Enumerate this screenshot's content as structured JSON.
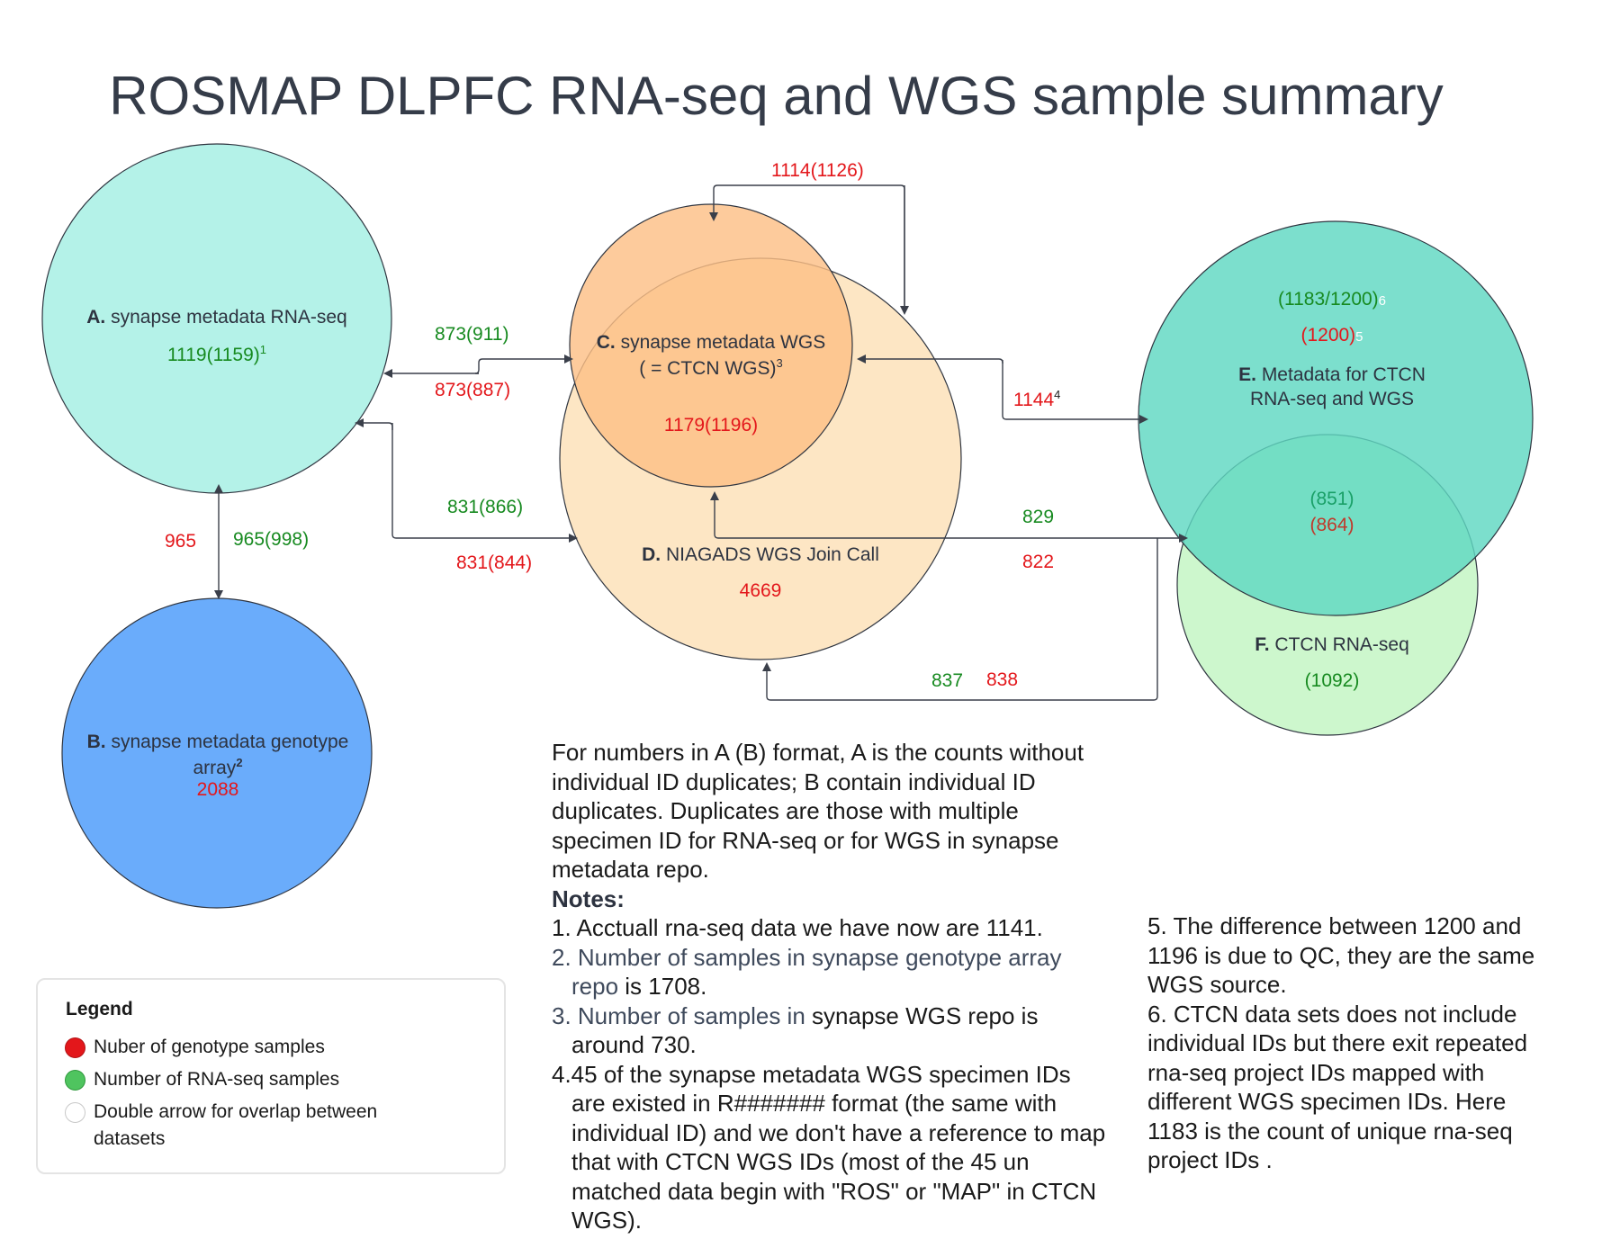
{
  "title": "ROSMAP DLPFC RNA-seq and WGS sample summary",
  "colors": {
    "red": "#e3171b",
    "green": "#178a20",
    "circle_a": "#b4f2e8",
    "circle_b": "#6aacfb",
    "circle_c": "#fdc593",
    "circle_d": "#fde6c4",
    "circle_e": "#7ddfcd",
    "circle_f": "#cdf7cd"
  },
  "nodes": {
    "a": {
      "letter": "A.",
      "label": "synapse metadata RNA-seq",
      "count": "1119(1159)",
      "sup": "1"
    },
    "b": {
      "letter": "B.",
      "label_line1": "synapse metadata genotype",
      "label_line2": "array",
      "sup": "2",
      "count": "2088"
    },
    "c": {
      "letter": "C.",
      "label_line1": "synapse metadata WGS",
      "label_line2": "( = CTCN WGS)",
      "sup": "3",
      "count": "1179(1196)"
    },
    "d": {
      "letter": "D.",
      "label": "NIAGADS WGS Join Call",
      "count": "4669"
    },
    "e": {
      "letter": "E.",
      "label_line1": "Metadata for CTCN",
      "label_line2": "RNA-seq and  WGS",
      "count_green": "(1183/1200)",
      "sup_green": "6",
      "count_red": "(1200)",
      "sup_red": "5"
    },
    "ef_overlap": {
      "count_green": "(851)",
      "count_red": "(864)"
    },
    "f": {
      "letter": "F.",
      "label": "CTCN RNA-seq",
      "count": "(1092)"
    }
  },
  "edges": {
    "c_loop": "1114(1126)",
    "a_c_green": "873(911)",
    "a_c_red": "873(887)",
    "a_d_green": "831(866)",
    "a_d_red": "831(844)",
    "a_b_red": "965",
    "a_b_green": "965(998)",
    "c_e_red": "1144",
    "c_e_sup": "4",
    "d_f_green": "829",
    "d_f_red": "822",
    "bottom_green": "837",
    "bottom_red": "838"
  },
  "explanation": [
    "For numbers in A (B) format, A is the counts without",
    "individual ID duplicates; B contain individual ID",
    "duplicates. Duplicates are those with multiple",
    "specimen ID for RNA-seq or for WGS in synapse",
    "metadata repo."
  ],
  "notes": {
    "heading": "Notes:",
    "n1": "1. Acctuall rna-seq data we have now are 1141.",
    "n2a": "2. Number of samples in synapse genotype array",
    "n2b_muted": "repo",
    "n2b_rest": " is 1708.",
    "n3a_muted": "3. Number of samples in",
    "n3a_rest": " synapse WGS repo is",
    "n3b": "around 730.",
    "n4": [
      "4.45 of the synapse metadata WGS specimen IDs",
      "are existed in R####### format (the same with",
      "individual ID) and we don't have a reference to map",
      "that with CTCN WGS IDs (most of the 45 un",
      "matched data begin with \"ROS\" or \"MAP\" in CTCN",
      "WGS)."
    ],
    "right": [
      "5. The difference between 1200 and",
      "1196 is due to QC, they are the same",
      "WGS source.",
      "6. CTCN data sets does not include",
      "individual IDs  but there exit repeated",
      "rna-seq project IDs mapped with",
      "different WGS specimen IDs. Here",
      "1183 is the count of unique rna-seq",
      "project IDs ."
    ]
  },
  "legend": {
    "title": "Legend",
    "items": [
      {
        "label": "Nuber of genotype samples",
        "color": "#e3171b"
      },
      {
        "label": "Number of RNA-seq samples",
        "color": "#4fc45f"
      },
      {
        "label_line1": "Double arrow for overlap between",
        "label_line2": "datasets",
        "color": "#ffffff"
      }
    ]
  }
}
